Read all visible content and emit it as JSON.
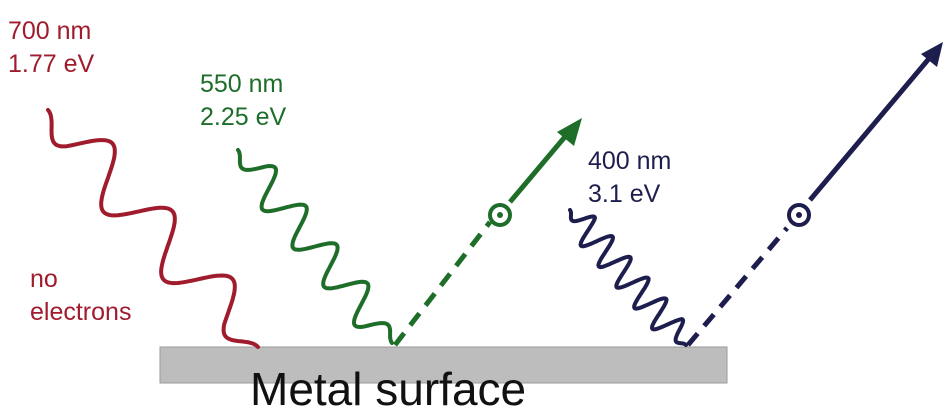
{
  "colors": {
    "red": "#a01c2c",
    "green": "#1e6e2a",
    "blue": "#1e1e4e",
    "surface": "#bdbdbd",
    "surface_edge": "#9a9a9a"
  },
  "photons": {
    "red": {
      "wavelength": "700 nm",
      "energy": "1.77 eV",
      "note_line1": "no",
      "note_line2": "electrons"
    },
    "green": {
      "wavelength": "550 nm",
      "energy": "2.25 eV"
    },
    "blue": {
      "wavelength": "400 nm",
      "energy": "3.1 eV"
    }
  },
  "surface_label": "Metal surface"
}
